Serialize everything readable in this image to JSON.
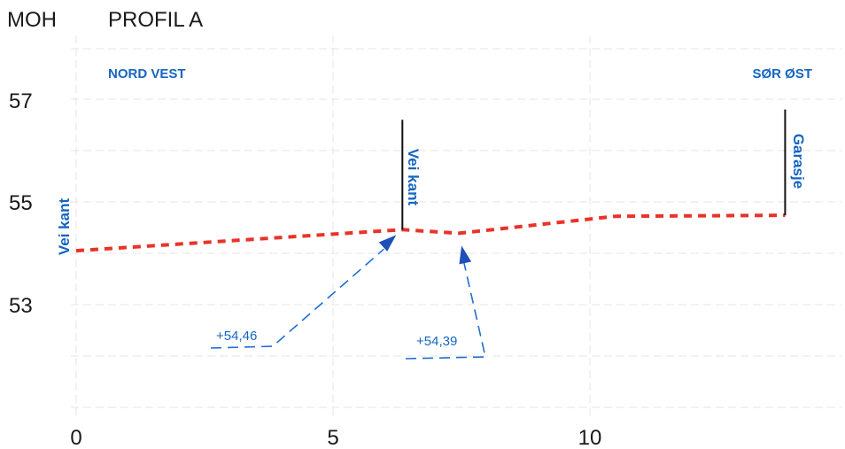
{
  "labels": {
    "unit": "MOH",
    "title": "PROFIL A",
    "left_direction": "NORD VEST",
    "right_direction": "SØR ØST"
  },
  "y_ticks": [
    {
      "value": 57,
      "label": "57"
    },
    {
      "value": 55,
      "label": "55"
    },
    {
      "value": 53,
      "label": "53"
    }
  ],
  "x_ticks": [
    {
      "value": 0,
      "label": "0"
    },
    {
      "value": 5,
      "label": "5"
    },
    {
      "value": 10,
      "label": "10"
    }
  ],
  "profile_points": [
    {
      "x": 0,
      "y": 54.05
    },
    {
      "x": 6.35,
      "y": 54.46
    },
    {
      "x": 7.45,
      "y": 54.39
    },
    {
      "x": 10.5,
      "y": 54.72
    },
    {
      "x": 13.8,
      "y": 54.74
    }
  ],
  "markers": [
    {
      "label": "Vei kant",
      "x": 0,
      "top": null
    },
    {
      "label": "Vei kant",
      "x": 6.35,
      "top": 56.6
    },
    {
      "label": "Garasje",
      "x": 13.8,
      "top": 56.8
    }
  ],
  "callouts": [
    {
      "label": "+54,46",
      "x": 6.35,
      "y": 54.46
    },
    {
      "label": "+54,39",
      "x": 7.45,
      "y": 54.39
    }
  ],
  "colors": {
    "terrain": "#e8332a",
    "annotation": "#1565c0"
  }
}
